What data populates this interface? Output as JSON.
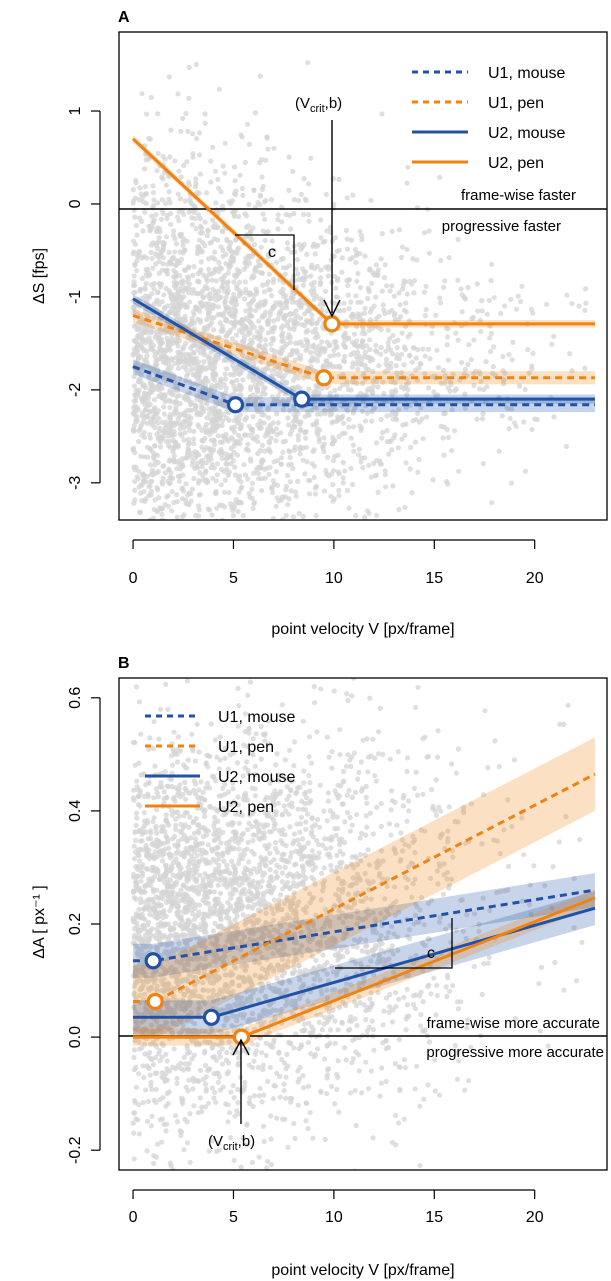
{
  "chart_data": [
    {
      "panel": "A",
      "type": "line",
      "xlabel": "point velocity V [px/frame]",
      "ylabel": "ΔS [fps]",
      "xlim": [
        -0.7,
        23.6
      ],
      "ylim": [
        -3.4,
        1.85
      ],
      "xticks": [
        0,
        5,
        10,
        15,
        20
      ],
      "yticks": [
        -3,
        -2,
        -1,
        0,
        1
      ],
      "grid": false,
      "legend_position": "top-right",
      "colors": {
        "mouse": "#2152a6",
        "pen": "#f0820f",
        "scatter": "#d4d4d4",
        "axis": "#000000"
      },
      "series": [
        {
          "name": "U1, mouse",
          "style": "dashed",
          "color": "#2152a6",
          "x": [
            0,
            5.1,
            23
          ],
          "y": [
            -1.75,
            -2.16,
            -2.16
          ],
          "band": 0.08
        },
        {
          "name": "U1, pen",
          "style": "dashed",
          "color": "#f0820f",
          "x": [
            0,
            9.5,
            23
          ],
          "y": [
            -1.2,
            -1.87,
            -1.87
          ],
          "band": 0.07
        },
        {
          "name": "U2, mouse",
          "style": "solid",
          "color": "#2152a6",
          "x": [
            0,
            8.4,
            23
          ],
          "y": [
            -1.02,
            -2.1,
            -2.1
          ],
          "band": 0.05
        },
        {
          "name": "U2, pen",
          "style": "solid",
          "color": "#f0820f",
          "x": [
            0,
            9.9,
            23
          ],
          "y": [
            0.7,
            -1.29,
            -1.29
          ],
          "band": 0.04
        }
      ],
      "breakpoints": [
        {
          "series": "U1, mouse",
          "x": 5.1,
          "y": -2.16
        },
        {
          "series": "U1, pen",
          "x": 9.5,
          "y": -1.87
        },
        {
          "series": "U2, mouse",
          "x": 8.4,
          "y": -2.1
        },
        {
          "series": "U2, pen",
          "x": 9.9,
          "y": -1.29
        }
      ],
      "annotations": {
        "vcrit_label": {
          "open": "(V",
          "sub": "crit",
          "close": ",b)"
        },
        "slope_label": "c",
        "region_upper": "frame-wise faster",
        "region_lower": "progressive faster"
      }
    },
    {
      "panel": "B",
      "type": "line",
      "xlabel": "point velocity V [px/frame]",
      "ylabel": "ΔA [ px⁻¹ ]",
      "xlim": [
        -0.7,
        23.6
      ],
      "ylim": [
        -0.235,
        0.635
      ],
      "xticks": [
        0,
        5,
        10,
        15,
        20
      ],
      "yticks": [
        -0.2,
        0.0,
        0.2,
        0.4,
        0.6
      ],
      "grid": false,
      "legend_position": "top-left",
      "colors": {
        "mouse": "#2152a6",
        "pen": "#f0820f",
        "scatter": "#d4d4d4",
        "axis": "#000000"
      },
      "series": [
        {
          "name": "U1, mouse",
          "style": "dashed",
          "color": "#2152a6",
          "x": [
            0,
            1.0,
            23
          ],
          "y": [
            0.135,
            0.135,
            0.26
          ],
          "band": 0.03
        },
        {
          "name": "U1, pen",
          "style": "dashed",
          "color": "#f0820f",
          "x": [
            0,
            1.1,
            23
          ],
          "y": [
            0.063,
            0.063,
            0.465
          ],
          "band": 0.065
        },
        {
          "name": "U2, mouse",
          "style": "solid",
          "color": "#2152a6",
          "x": [
            0,
            3.9,
            23
          ],
          "y": [
            0.035,
            0.035,
            0.228
          ],
          "band": 0.03
        },
        {
          "name": "U2, pen",
          "style": "solid",
          "color": "#f0820f",
          "x": [
            0,
            5.4,
            23
          ],
          "y": [
            0.0,
            0.0,
            0.246
          ],
          "band": 0.015
        }
      ],
      "breakpoints": [
        {
          "series": "U1, mouse",
          "x": 1.0,
          "y": 0.135
        },
        {
          "series": "U1, pen",
          "x": 1.1,
          "y": 0.063
        },
        {
          "series": "U2, mouse",
          "x": 3.9,
          "y": 0.035
        },
        {
          "series": "U2, pen",
          "x": 5.4,
          "y": 0.0
        }
      ],
      "annotations": {
        "vcrit_label": {
          "open": "(V",
          "sub": "crit",
          "close": ",b)"
        },
        "slope_label": "c",
        "region_upper": "frame-wise more accurate",
        "region_lower": "progressive more accurate"
      }
    }
  ]
}
